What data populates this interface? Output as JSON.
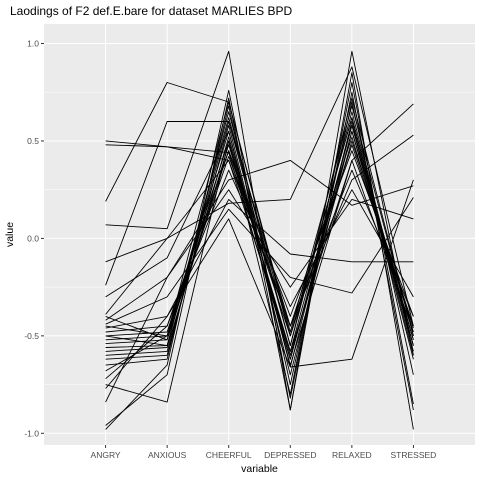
{
  "chart_data": {
    "type": "line",
    "title": "Laodings of F2 def.E.bare for dataset MARLIES BPD",
    "xlabel": "variable",
    "ylabel": "value",
    "categories": [
      "ANGRY",
      "ANXIOUS",
      "CHEERFUL",
      "DEPRESSED",
      "RELAXED",
      "STRESSED"
    ],
    "ylim": [
      -1.06,
      1.1
    ],
    "yticks": [
      -1.0,
      -0.5,
      0.0,
      0.5,
      1.0
    ],
    "ytick_labels": [
      "-1.0",
      "-0.5",
      "0.0",
      "0.5",
      "1.0"
    ],
    "grid": true,
    "panel_background": "#ebebeb",
    "grid_color": "#ffffff",
    "line_color": "#000000",
    "series": [
      {
        "values": [
          0.5,
          0.47,
          0.44,
          -0.62,
          0.55,
          -0.48
        ]
      },
      {
        "values": [
          0.48,
          0.47,
          0.4,
          -0.58,
          0.58,
          -0.52
        ]
      },
      {
        "values": [
          0.19,
          0.8,
          0.7,
          -0.5,
          0.62,
          -0.55
        ]
      },
      {
        "values": [
          0.07,
          0.05,
          0.96,
          -0.88,
          0.96,
          -0.6
        ]
      },
      {
        "values": [
          -0.12,
          0.0,
          0.18,
          0.2,
          0.88,
          -0.45
        ]
      },
      {
        "values": [
          -0.24,
          0.6,
          0.6,
          -0.55,
          0.72,
          -0.5
        ]
      },
      {
        "values": [
          -0.3,
          -0.1,
          0.55,
          -0.65,
          0.4,
          0.69
        ]
      },
      {
        "values": [
          -0.39,
          0.0,
          0.4,
          -0.45,
          0.3,
          0.53
        ]
      },
      {
        "values": [
          -0.42,
          -0.2,
          0.3,
          0.4,
          0.17,
          0.27
        ]
      },
      {
        "values": [
          -0.44,
          -0.3,
          0.15,
          -0.2,
          -0.28,
          0.21
        ]
      },
      {
        "values": [
          -0.46,
          -0.4,
          0.2,
          -0.08,
          -0.12,
          -0.12
        ]
      },
      {
        "values": [
          -0.48,
          -0.45,
          0.45,
          -0.4,
          0.45,
          -0.4
        ]
      },
      {
        "values": [
          -0.5,
          -0.48,
          0.5,
          -0.6,
          0.5,
          -0.45
        ]
      },
      {
        "values": [
          -0.52,
          -0.5,
          0.55,
          -0.7,
          0.55,
          -0.55
        ]
      },
      {
        "values": [
          -0.54,
          -0.52,
          0.62,
          -0.5,
          0.62,
          -0.6
        ]
      },
      {
        "values": [
          -0.56,
          -0.55,
          0.65,
          -0.55,
          0.65,
          -0.58
        ]
      },
      {
        "values": [
          -0.58,
          -0.56,
          0.48,
          -0.58,
          0.4,
          -0.48
        ]
      },
      {
        "values": [
          -0.6,
          -0.58,
          0.52,
          -0.62,
          0.58,
          -0.55
        ]
      },
      {
        "values": [
          -0.62,
          -0.6,
          0.58,
          -0.66,
          0.6,
          -0.62
        ]
      },
      {
        "values": [
          -0.65,
          -0.62,
          0.68,
          -0.75,
          0.7,
          -0.7
        ]
      },
      {
        "values": [
          -0.68,
          -0.5,
          0.42,
          -0.45,
          0.35,
          -0.4
        ]
      },
      {
        "values": [
          -0.72,
          -0.45,
          0.35,
          -0.35,
          0.25,
          -0.3
        ]
      },
      {
        "values": [
          -0.75,
          -0.84,
          0.5,
          -0.8,
          0.8,
          -0.85
        ]
      },
      {
        "values": [
          -0.77,
          -0.4,
          0.1,
          -0.66,
          -0.62,
          0.3
        ]
      },
      {
        "values": [
          -0.84,
          -0.2,
          0.25,
          -0.25,
          0.2,
          0.1
        ]
      },
      {
        "values": [
          -0.96,
          -0.7,
          0.72,
          -0.88,
          0.85,
          -0.98
        ]
      },
      {
        "values": [
          -0.98,
          -0.65,
          0.76,
          -0.82,
          0.75,
          -0.88
        ]
      },
      {
        "values": [
          -0.4,
          -0.52,
          0.45,
          -0.5,
          0.48,
          -0.46
        ]
      },
      {
        "values": [
          -0.5,
          -0.55,
          0.6,
          -0.45,
          0.52,
          -0.52
        ]
      },
      {
        "values": [
          -0.45,
          -0.5,
          0.7,
          -0.48,
          0.68,
          -0.5
        ]
      }
    ]
  }
}
